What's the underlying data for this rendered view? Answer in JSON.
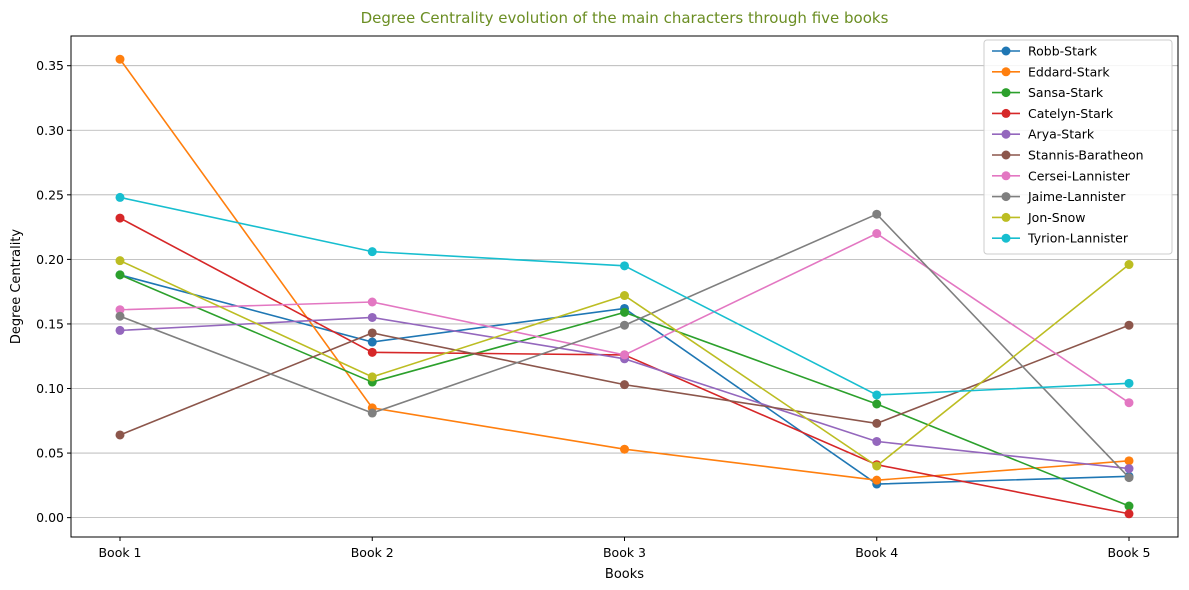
{
  "chart_data": {
    "type": "line",
    "title": "Degree Centrality evolution of the main characters through five books",
    "title_color": "#6b8e23",
    "xlabel": "Books",
    "ylabel": "Degree Centrality",
    "categories": [
      "Book 1",
      "Book 2",
      "Book 3",
      "Book 4",
      "Book 5"
    ],
    "ylim": [
      -0.015,
      0.373
    ],
    "yticks": [
      0.0,
      0.05,
      0.1,
      0.15,
      0.2,
      0.25,
      0.3,
      0.35
    ],
    "ytick_labels": [
      "0.00",
      "0.05",
      "0.10",
      "0.15",
      "0.20",
      "0.25",
      "0.30",
      "0.35"
    ],
    "grid": "horizontal",
    "legend_position": "top-right",
    "series": [
      {
        "name": "Robb-Stark",
        "color": "#1f77b4",
        "values": [
          0.188,
          0.136,
          0.162,
          0.026,
          0.032
        ]
      },
      {
        "name": "Eddard-Stark",
        "color": "#ff7f0e",
        "values": [
          0.355,
          0.085,
          0.053,
          0.029,
          0.044
        ]
      },
      {
        "name": "Sansa-Stark",
        "color": "#2ca02c",
        "values": [
          0.188,
          0.105,
          0.159,
          0.088,
          0.009
        ]
      },
      {
        "name": "Catelyn-Stark",
        "color": "#d62728",
        "values": [
          0.232,
          0.128,
          0.126,
          0.041,
          0.003
        ]
      },
      {
        "name": "Arya-Stark",
        "color": "#9467bd",
        "values": [
          0.145,
          0.155,
          0.123,
          0.059,
          0.038
        ]
      },
      {
        "name": "Stannis-Baratheon",
        "color": "#8c564b",
        "values": [
          0.064,
          0.143,
          0.103,
          0.073,
          0.149
        ]
      },
      {
        "name": "Cersei-Lannister",
        "color": "#e377c2",
        "values": [
          0.161,
          0.167,
          0.126,
          0.22,
          0.089
        ]
      },
      {
        "name": "Jaime-Lannister",
        "color": "#7f7f7f",
        "values": [
          0.156,
          0.081,
          0.149,
          0.235,
          0.031
        ]
      },
      {
        "name": "Jon-Snow",
        "color": "#bcbd22",
        "values": [
          0.199,
          0.109,
          0.172,
          0.04,
          0.196
        ]
      },
      {
        "name": "Tyrion-Lannister",
        "color": "#17becf",
        "values": [
          0.248,
          0.206,
          0.195,
          0.095,
          0.104
        ]
      }
    ]
  }
}
